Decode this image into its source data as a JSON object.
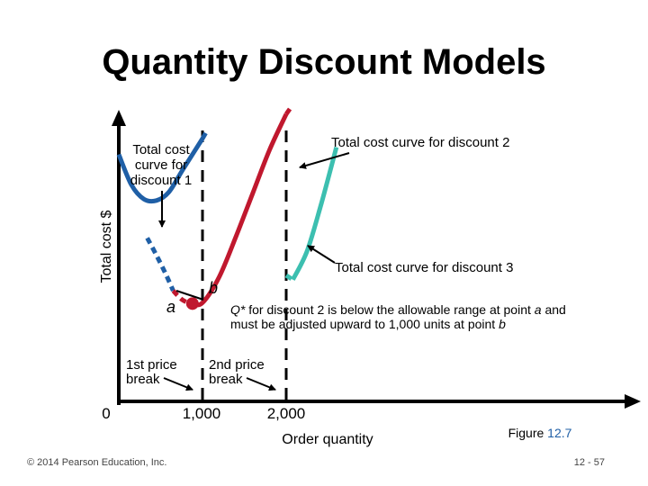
{
  "slide": {
    "title": "Quantity Discount Models",
    "footer_left": "© 2014 Pearson Education, Inc.",
    "page_number": "12 - 57",
    "figure_label": "Figure ",
    "figure_number": "12.7"
  },
  "chart_data": {
    "type": "line",
    "xlabel": "Order quantity",
    "ylabel": "Total cost $",
    "x_ticks": [
      "0",
      "1,000",
      "2,000"
    ],
    "price_breaks": [
      {
        "x": 1000,
        "label_line1": "1st price",
        "label_line2": "break"
      },
      {
        "x": 2000,
        "label_line1": "2nd price",
        "label_line2": "break"
      }
    ],
    "series": [
      {
        "name": "Total cost curve for discount 1",
        "color": "#1f5fa6",
        "segments": [
          {
            "style": "dashed",
            "points": [
              [
                340,
                2.55
              ],
              [
                450,
                1.95
              ],
              [
                560,
                1.3
              ],
              [
                650,
                0.72
              ]
            ]
          },
          {
            "style": "solid",
            "points": [
              [
                0,
                5.45
              ],
              [
                150,
                4.4
              ],
              [
                300,
                3.9
              ],
              [
                450,
                3.85
              ],
              [
                600,
                4.15
              ],
              [
                760,
                4.9
              ],
              [
                1000,
                6.0
              ]
            ]
          },
          {
            "style": "dashed",
            "points": [
              [
                1000,
                6.0
              ],
              [
                1060,
                6.3
              ]
            ]
          }
        ]
      },
      {
        "name": "Total cost curve for discount 2",
        "color": "#c0182e",
        "segments": [
          {
            "style": "dashed",
            "points": [
              [
                650,
                0.72
              ],
              [
                700,
                0.56
              ],
              [
                760,
                0.4
              ],
              [
                830,
                0.3
              ],
              [
                880,
                0.27
              ]
            ]
          },
          {
            "style": "solid",
            "points": [
              [
                880,
                0.27
              ],
              [
                1000,
                0.3
              ],
              [
                1200,
                1.2
              ],
              [
                1400,
                2.6
              ],
              [
                1600,
                4.1
              ],
              [
                1800,
                5.6
              ],
              [
                2000,
                6.85
              ]
            ]
          },
          {
            "style": "dashed",
            "points": [
              [
                2000,
                6.85
              ],
              [
                2060,
                7.1
              ]
            ]
          }
        ]
      },
      {
        "name": "Total cost curve for discount 3",
        "color": "#3cbfb0",
        "segments": [
          {
            "style": "dashed",
            "points": [
              [
                2000,
                1.25
              ],
              [
                2080,
                1.1
              ]
            ]
          },
          {
            "style": "solid",
            "points": [
              [
                2080,
                1.1
              ],
              [
                2250,
                2.1
              ],
              [
                2420,
                3.75
              ],
              [
                2600,
                5.7
              ]
            ]
          }
        ]
      }
    ],
    "points": [
      {
        "label": "a",
        "x": 880,
        "y": 0.27
      },
      {
        "label": "b",
        "x": 1000,
        "y": 0.3
      }
    ],
    "annotations": {
      "discount1_line1": "Total cost",
      "discount1_line2": "curve for",
      "discount1_line3": "discount 1",
      "discount2": "Total cost curve for discount 2",
      "discount3": "Total cost curve for discount 3",
      "qstar_prefix": "Q*",
      "qstar_line1": " for discount 2 is below the allowable range at point ",
      "qstar_line1_a": "a",
      "qstar_line1_end": " and",
      "qstar_line2": "must be adjusted upward to 1,000 units at point ",
      "qstar_line2_b": "b"
    }
  }
}
